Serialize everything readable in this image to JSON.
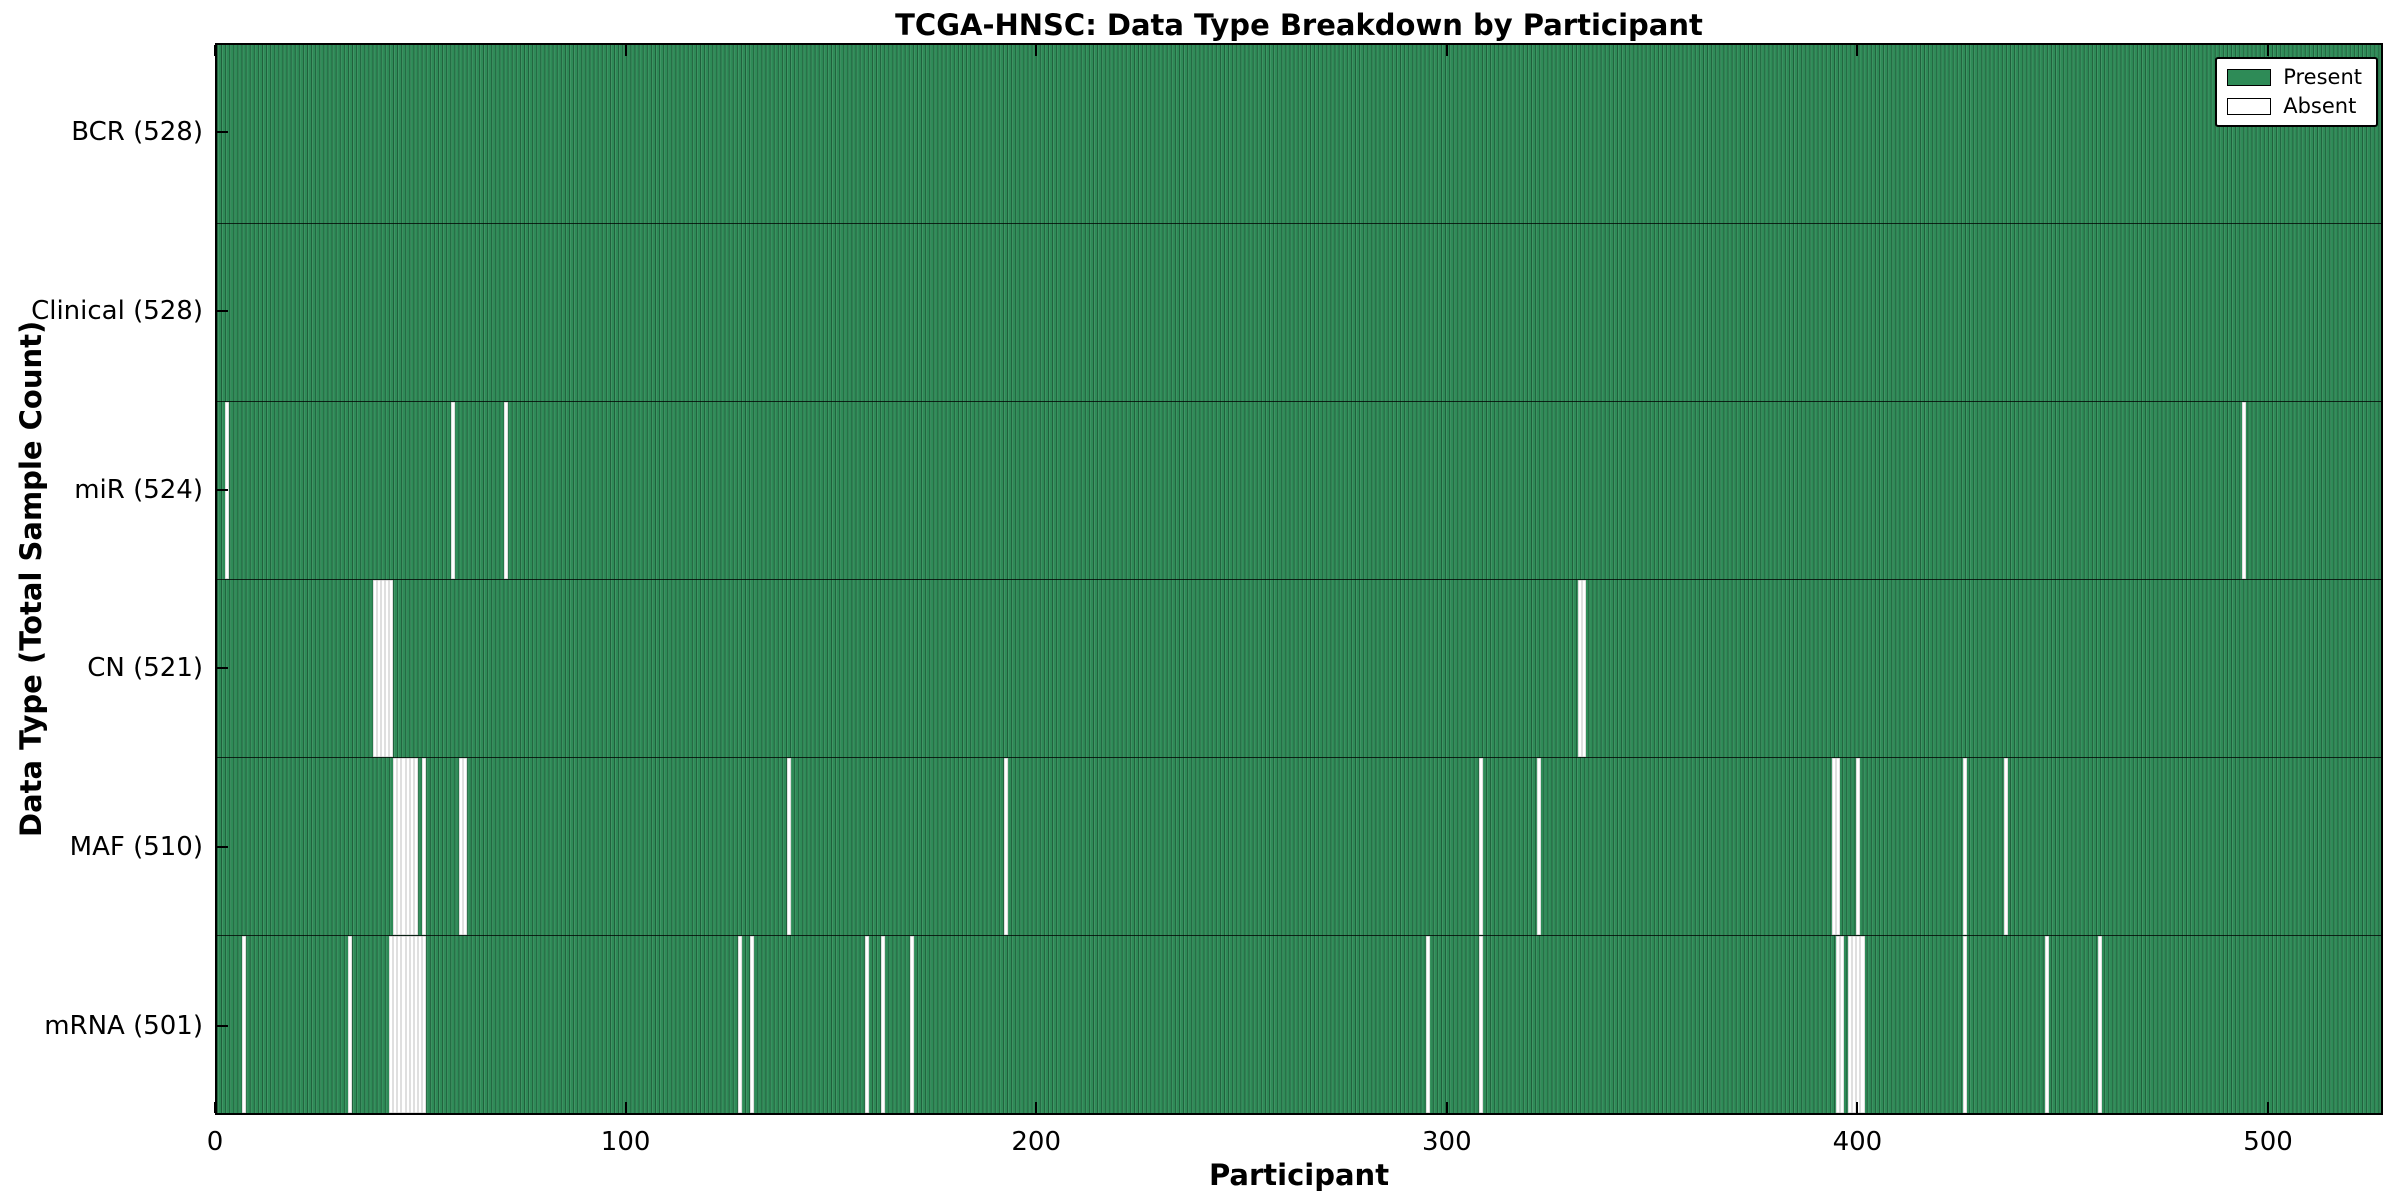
{
  "title": "TCGA-HNSC: Data Type Breakdown by Participant",
  "axes": {
    "x_label": "Participant",
    "y_label": "Data Type (Total Sample Count)",
    "x_ticks": [
      0,
      100,
      200,
      300,
      400,
      500
    ]
  },
  "legend": {
    "items": [
      {
        "label": "Present",
        "color": "#2e8b57"
      },
      {
        "label": "Absent",
        "color": "#ffffff"
      }
    ]
  },
  "colors": {
    "present": "#2e8b57",
    "present_edge": "#1c5736",
    "absent": "#ffffff",
    "frame": "#000000"
  },
  "chart_data": {
    "type": "heatmap",
    "title": "TCGA-HNSC: Data Type Breakdown by Participant",
    "xlabel": "Participant",
    "ylabel": "Data Type (Total Sample Count)",
    "x_range": [
      0,
      528
    ],
    "n_participants": 528,
    "legend_position": "upper right",
    "legend_entries": [
      "Present",
      "Absent"
    ],
    "rows": [
      {
        "label": "BCR (528)",
        "data_type": "BCR",
        "total": 528,
        "absent": []
      },
      {
        "label": "Clinical (528)",
        "data_type": "Clinical",
        "total": 528,
        "absent": []
      },
      {
        "label": "miR (524)",
        "data_type": "miR",
        "total": 524,
        "absent": [
          2,
          57,
          70,
          494
        ]
      },
      {
        "label": "CN (521)",
        "data_type": "CN",
        "total": 521,
        "absent": [
          38,
          39,
          40,
          41,
          42,
          332,
          333
        ]
      },
      {
        "label": "MAF (510)",
        "data_type": "MAF",
        "total": 510,
        "absent": [
          43,
          44,
          45,
          46,
          47,
          48,
          50,
          59,
          60,
          139,
          192,
          308,
          322,
          394,
          395,
          400,
          426,
          436
        ]
      },
      {
        "label": "mRNA (501)",
        "data_type": "mRNA",
        "total": 501,
        "absent": [
          6,
          32,
          42,
          43,
          44,
          45,
          46,
          47,
          48,
          49,
          50,
          127,
          130,
          158,
          162,
          169,
          295,
          308,
          395,
          396,
          398,
          399,
          400,
          401,
          426,
          446,
          459
        ]
      }
    ]
  }
}
